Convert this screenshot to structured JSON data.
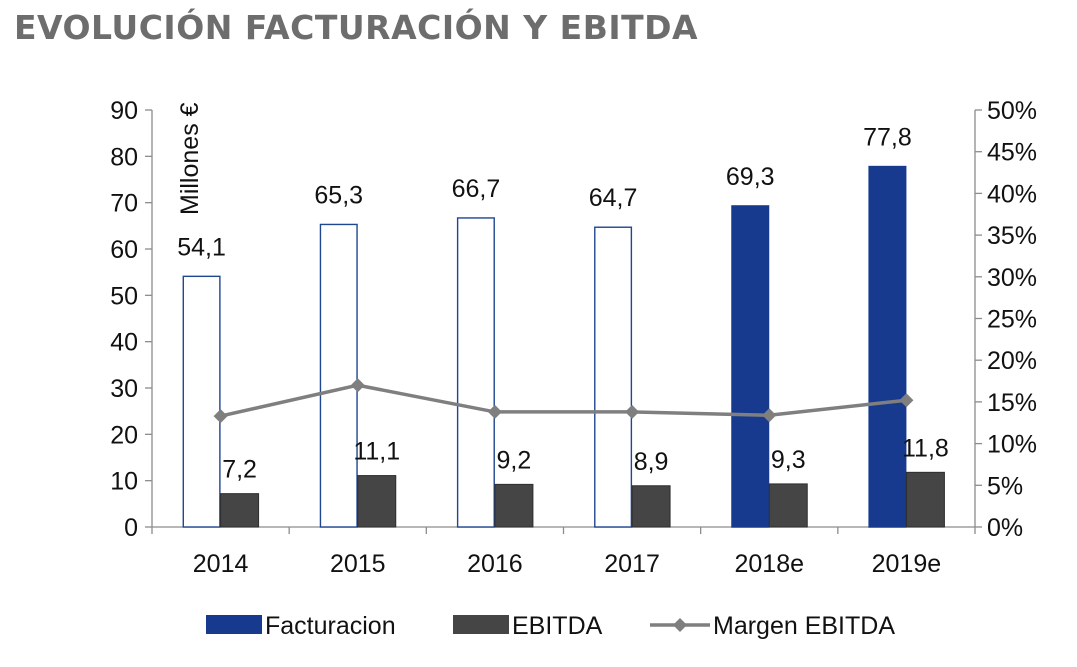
{
  "page_title": "EVOLUCIÓN FACTURACIÓN Y EBITDA",
  "chart_data": {
    "type": "bar",
    "title": "EVOLUCIÓN FACTURACIÓN Y EBITDA",
    "categories": [
      "2014",
      "2015",
      "2016",
      "2017",
      "2018e",
      "2019e"
    ],
    "series": [
      {
        "name": "Facturacion",
        "kind": "bar",
        "axis": "left",
        "values": [
          54.1,
          65.3,
          66.7,
          64.7,
          69.3,
          77.8
        ],
        "labels": [
          "54,1",
          "65,3",
          "66,7",
          "64,7",
          "69,3",
          "77,8"
        ],
        "estimated": [
          false,
          false,
          false,
          false,
          true,
          true
        ],
        "color": "#173a8f",
        "outline_color": "#1f4691"
      },
      {
        "name": "EBITDA",
        "kind": "bar",
        "axis": "left",
        "values": [
          7.2,
          11.1,
          9.2,
          8.9,
          9.3,
          11.8
        ],
        "labels": [
          "7,2",
          "11,1",
          "9,2",
          "8,9",
          "9,3",
          "11,8"
        ],
        "color": "#454545"
      },
      {
        "name": "Margen EBITDA",
        "kind": "line",
        "axis": "right",
        "values": [
          13.3,
          17.0,
          13.8,
          13.8,
          13.4,
          15.2
        ],
        "color": "#7f7f7f",
        "marker": "diamond"
      }
    ],
    "ylabel": "Millones €",
    "ylim": [
      0,
      90
    ],
    "yticks": [
      0,
      10,
      20,
      30,
      40,
      50,
      60,
      70,
      80,
      90
    ],
    "y2lim": [
      0,
      50
    ],
    "y2ticks": [
      "0%",
      "5%",
      "10%",
      "15%",
      "20%",
      "25%",
      "30%",
      "35%",
      "40%",
      "45%",
      "50%"
    ],
    "legend_position": "bottom",
    "grid": false
  }
}
